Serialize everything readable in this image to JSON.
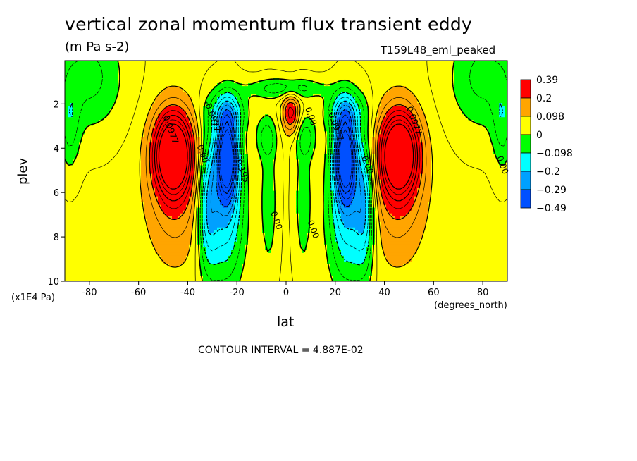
{
  "chart_data": {
    "type": "heatmap",
    "title": "vertical zonal momentum flux transient eddy",
    "subtitle": "(m Pa s-2)",
    "dataset_label": "T159L48_eml_peaked",
    "xlabel": "lat",
    "ylabel": "plev",
    "x_units": "(degrees_north)",
    "y_units": "(x1E4 Pa)",
    "xlim": [
      -90,
      90
    ],
    "ylim": [
      10,
      0
    ],
    "x_ticks": [
      "-80",
      "-60",
      "-40",
      "-20",
      "0",
      "20",
      "40",
      "60",
      "80"
    ],
    "y_ticks": [
      "2",
      "4",
      "6",
      "8",
      "10"
    ],
    "contour_interval_text": "CONTOUR INTERVAL = 4.887E-02",
    "colorbar": {
      "levels": [
        "0.39",
        "0.2",
        "0.098",
        "0",
        "−0.098",
        "−0.2",
        "−0.29",
        "−0.49"
      ],
      "colors": [
        "#ff0000",
        "#ffa500",
        "#ffff00",
        "#00ff00",
        "#00ffff",
        "#00a0ff",
        "#0050ff"
      ]
    },
    "contour_labels": [
      {
        "text": "0.0977",
        "lat": -48,
        "plev": 3.2
      },
      {
        "text": "0.00",
        "lat": -35,
        "plev": 4.3
      },
      {
        "text": "-0.0977",
        "lat": -31,
        "plev": 2.6
      },
      {
        "text": "-0.195",
        "lat": -19,
        "plev": 5.0
      },
      {
        "text": "0.00",
        "lat": -5,
        "plev": 7.3
      },
      {
        "text": "0.00",
        "lat": 9,
        "plev": 2.6
      },
      {
        "text": "-0.0977",
        "lat": 19,
        "plev": 3.0
      },
      {
        "text": "0.00",
        "lat": 10,
        "plev": 7.7
      },
      {
        "text": "0.00",
        "lat": 32,
        "plev": 4.8
      },
      {
        "text": "0.0977",
        "lat": 51,
        "plev": 2.8
      },
      {
        "text": "0.00",
        "lat": 87,
        "plev": 4.8
      }
    ],
    "features": [
      {
        "lat": -48,
        "plev": 4.2,
        "peak": 0.39
      },
      {
        "lat": 46,
        "plev": 4.2,
        "peak": 0.39
      },
      {
        "lat": -24,
        "plev": 4.3,
        "peak": -0.45
      },
      {
        "lat": 24,
        "plev": 4.3,
        "peak": -0.45
      },
      {
        "lat": 2,
        "plev": 2.3,
        "peak": 0.2
      }
    ]
  }
}
